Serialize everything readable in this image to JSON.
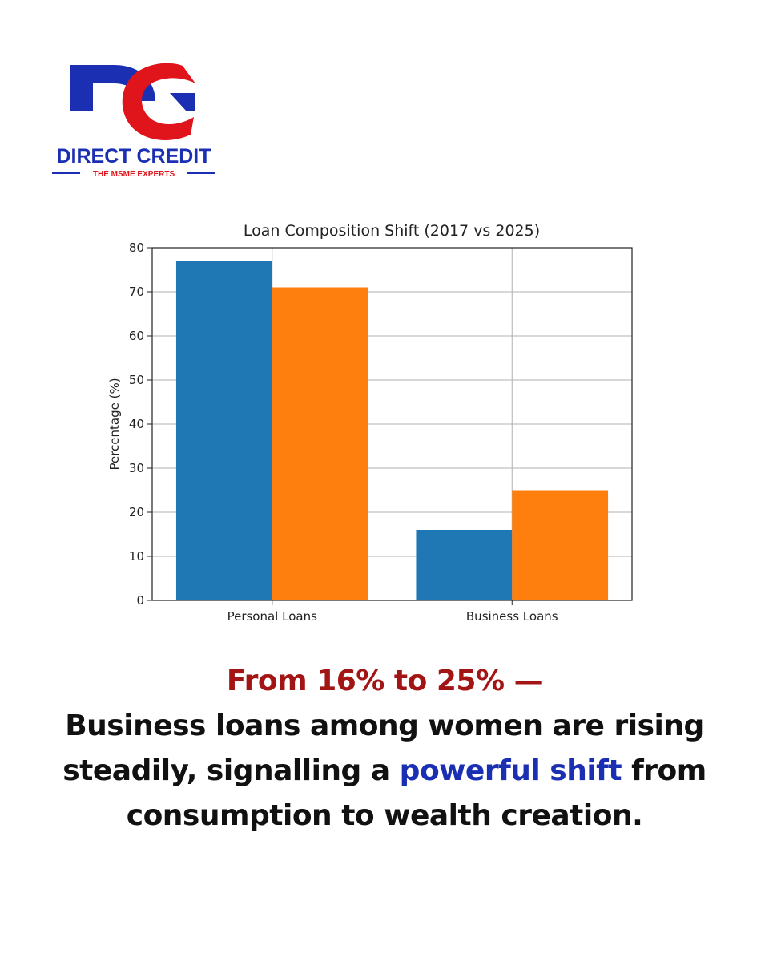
{
  "brand": {
    "name": "DIRECT CREDIT",
    "tagline": "THE MSME EXPERTS",
    "colors": {
      "blue": "#1b2fb3",
      "red": "#e0141b"
    }
  },
  "chart_data": {
    "type": "bar",
    "title": "Loan Composition Shift (2017 vs 2025)",
    "xlabel": "",
    "ylabel": "Percentage (%)",
    "categories": [
      "Personal Loans",
      "Business Loans"
    ],
    "series": [
      {
        "values": [
          77,
          16
        ],
        "color": "#1f77b4"
      },
      {
        "values": [
          71,
          25
        ],
        "color": "#ff7f0e"
      }
    ],
    "ylim": [
      0,
      80
    ],
    "yticks": [
      0,
      10,
      20,
      30,
      40,
      50,
      60,
      70,
      80
    ],
    "grid": true,
    "legend": "none"
  },
  "caption": {
    "headline": "From 16% to 25% —",
    "body_1": "Business loans among women are rising steadily, signalling a ",
    "highlight": "powerful shift",
    "body_2": " from consumption to wealth creation."
  }
}
